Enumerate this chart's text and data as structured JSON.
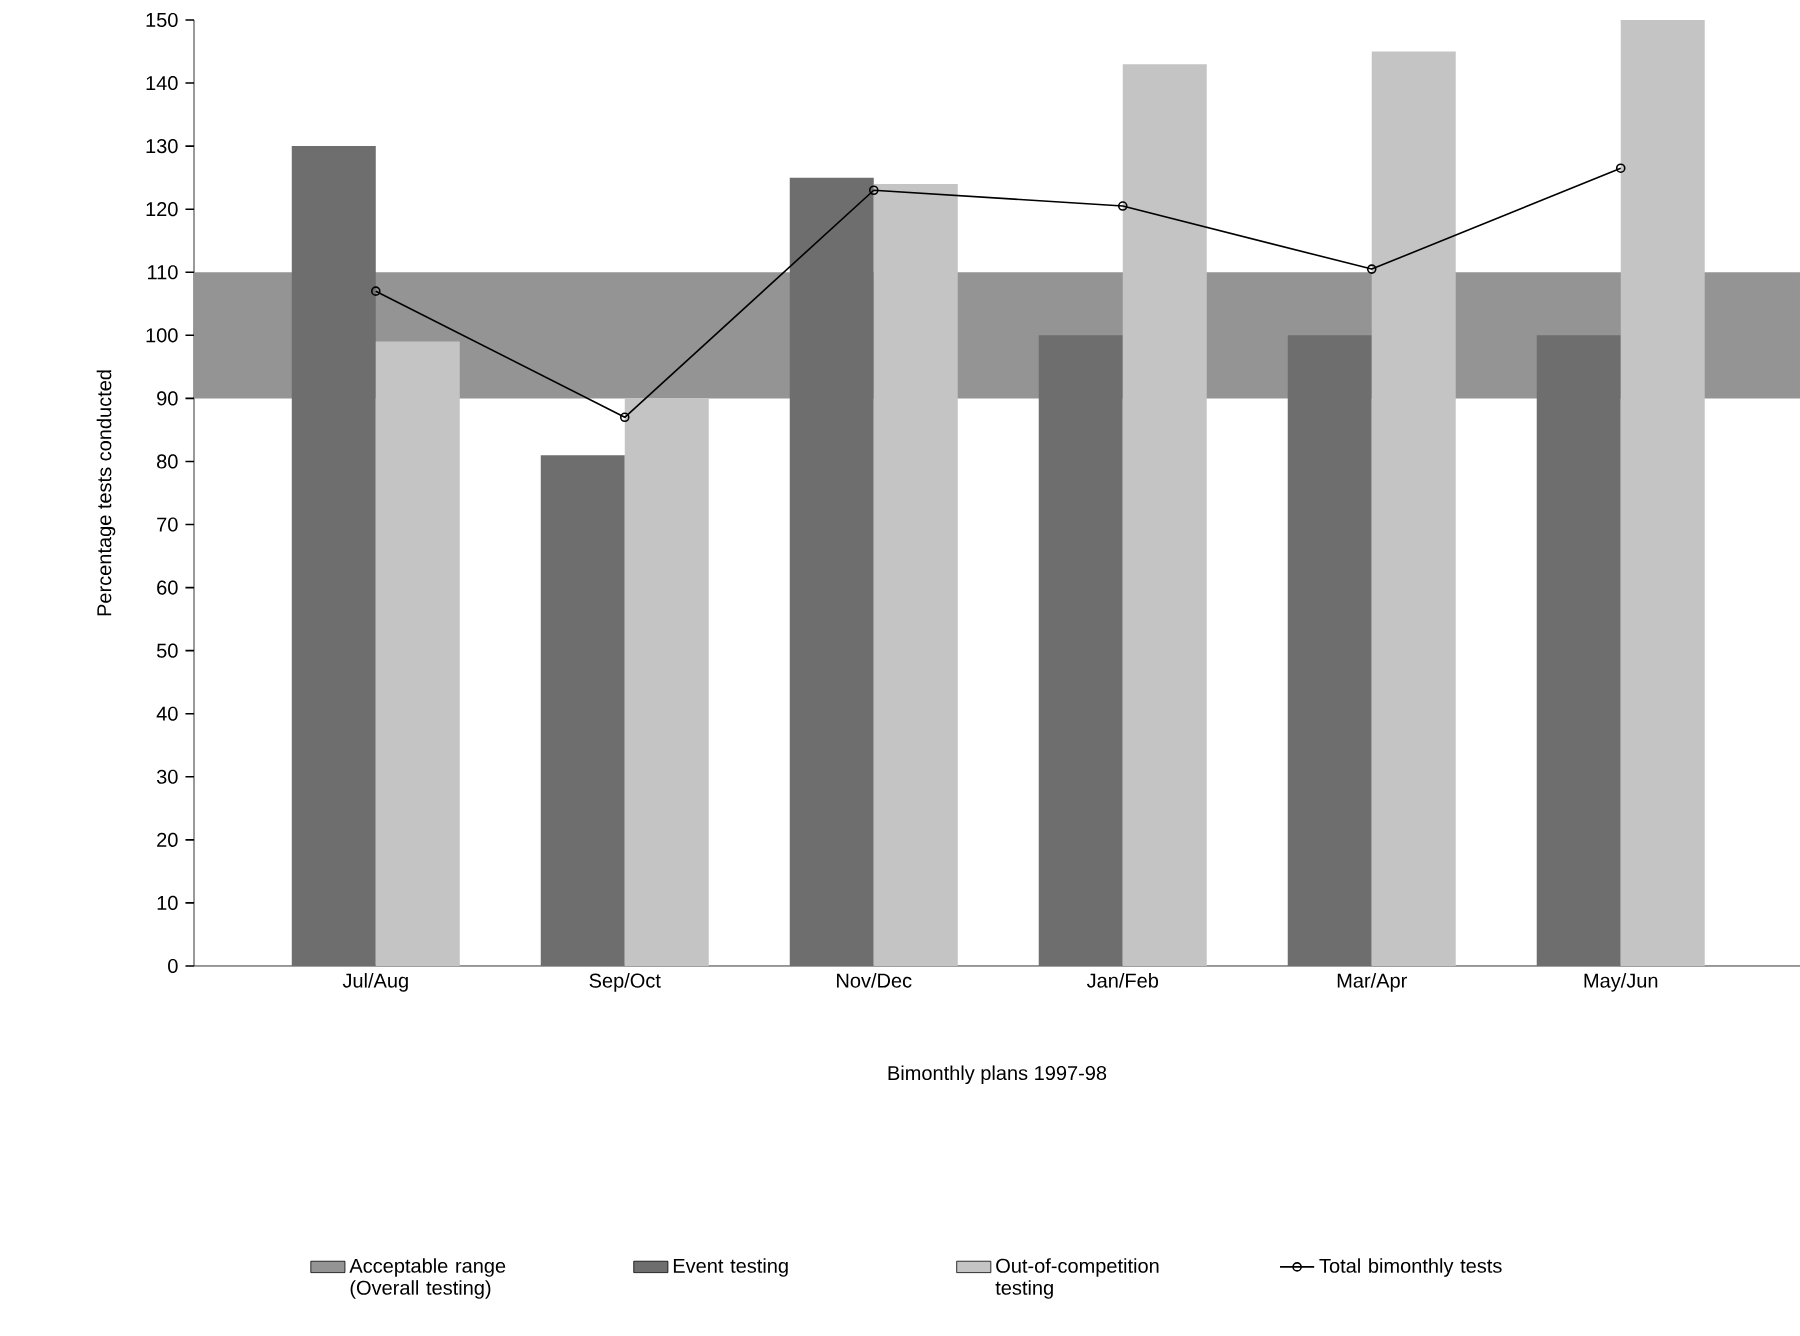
{
  "chart_data": {
    "type": "bar",
    "categories": [
      "Jul/Aug",
      "Sep/Oct",
      "Nov/Dec",
      "Jan/Feb",
      "Mar/Apr",
      "May/Jun"
    ],
    "series": [
      {
        "name": "Event testing",
        "color": "#6e6e6e",
        "values": [
          130,
          81,
          125,
          100,
          100,
          100
        ]
      },
      {
        "name": "Out-of-competition testing",
        "color": "#c4c4c4",
        "values": [
          99,
          90,
          124,
          143,
          145,
          150
        ]
      },
      {
        "name": "Total bimonthly tests",
        "type": "line",
        "color": "#000000",
        "marker": "circle",
        "values": [
          107,
          87,
          123,
          120.5,
          110.5,
          126.5
        ]
      }
    ],
    "bands": [
      {
        "axis": "y",
        "from": 90,
        "to": 110,
        "label": "Acceptable range (Overall testing)",
        "color": "#949494"
      }
    ],
    "xlabel": "Bimonthly plans 1997-98",
    "ylabel": "Percentage tests conducted",
    "ylim": [
      0,
      150
    ],
    "yticks": [
      0,
      10,
      20,
      30,
      40,
      50,
      60,
      70,
      80,
      90,
      100,
      110,
      120,
      130,
      140,
      150
    ],
    "legend": "bottom",
    "grid": false
  }
}
